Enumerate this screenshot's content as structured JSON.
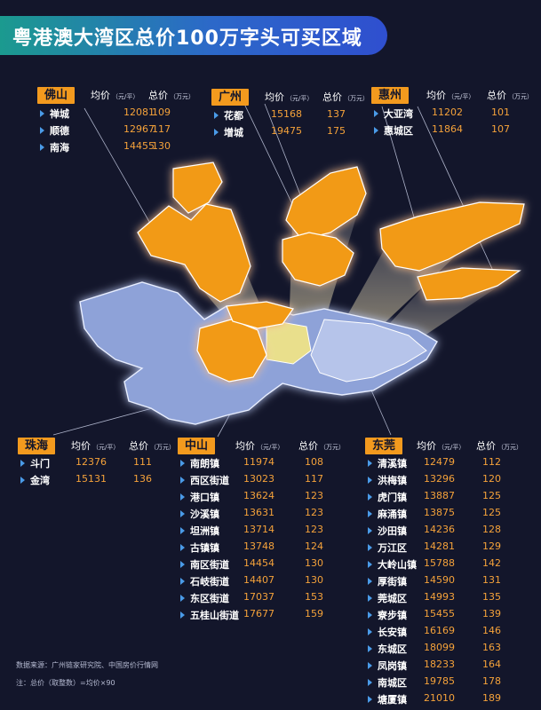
{
  "title": "粤港澳大湾区总价100万字头可买区域",
  "columns": {
    "price_label": "均价",
    "price_unit": "（元/平）",
    "total_label": "总价",
    "total_unit": "（万元）"
  },
  "colors": {
    "background": "#13162b",
    "accent": "#f39a1e",
    "value_text": "#f5a23a",
    "map_orange": "#f29a16",
    "map_blue": "#8ea2d8"
  },
  "regions": [
    {
      "id": "foshan",
      "name": "佛山",
      "areas": [
        {
          "name": "禅城",
          "price": "12081",
          "total": "109"
        },
        {
          "name": "顺德",
          "price": "12967",
          "total": "117"
        },
        {
          "name": "南海",
          "price": "14455",
          "total": "130"
        }
      ]
    },
    {
      "id": "guangzhou",
      "name": "广州",
      "areas": [
        {
          "name": "花都",
          "price": "15168",
          "total": "137"
        },
        {
          "name": "增城",
          "price": "19475",
          "total": "175"
        }
      ]
    },
    {
      "id": "huizhou",
      "name": "惠州",
      "areas": [
        {
          "name": "大亚湾",
          "price": "11202",
          "total": "101"
        },
        {
          "name": "惠城区",
          "price": "11864",
          "total": "107"
        }
      ]
    },
    {
      "id": "zhuhai",
      "name": "珠海",
      "areas": [
        {
          "name": "斗门",
          "price": "12376",
          "total": "111"
        },
        {
          "name": "金湾",
          "price": "15131",
          "total": "136"
        }
      ]
    },
    {
      "id": "zhongshan",
      "name": "中山",
      "areas": [
        {
          "name": "南朗镇",
          "price": "11974",
          "total": "108"
        },
        {
          "name": "西区街道",
          "price": "13023",
          "total": "117"
        },
        {
          "name": "港口镇",
          "price": "13624",
          "total": "123"
        },
        {
          "name": "沙溪镇",
          "price": "13631",
          "total": "123"
        },
        {
          "name": "坦洲镇",
          "price": "13714",
          "total": "123"
        },
        {
          "name": "古镇镇",
          "price": "13748",
          "total": "124"
        },
        {
          "name": "南区街道",
          "price": "14454",
          "total": "130"
        },
        {
          "name": "石岐街道",
          "price": "14407",
          "total": "130"
        },
        {
          "name": "东区街道",
          "price": "17037",
          "total": "153"
        },
        {
          "name": "五桂山街道",
          "price": "17677",
          "total": "159"
        }
      ]
    },
    {
      "id": "dongguan",
      "name": "东莞",
      "areas": [
        {
          "name": "清溪镇",
          "price": "12479",
          "total": "112"
        },
        {
          "name": "洪梅镇",
          "price": "13296",
          "total": "120"
        },
        {
          "name": "虎门镇",
          "price": "13887",
          "total": "125"
        },
        {
          "name": "麻涌镇",
          "price": "13875",
          "total": "125"
        },
        {
          "name": "沙田镇",
          "price": "14236",
          "total": "128"
        },
        {
          "name": "万江区",
          "price": "14281",
          "total": "129"
        },
        {
          "name": "大岭山镇",
          "price": "15788",
          "total": "142"
        },
        {
          "name": "厚街镇",
          "price": "14590",
          "total": "131"
        },
        {
          "name": "莞城区",
          "price": "14993",
          "total": "135"
        },
        {
          "name": "寮步镇",
          "price": "15455",
          "total": "139"
        },
        {
          "name": "长安镇",
          "price": "16169",
          "total": "146"
        },
        {
          "name": "东城区",
          "price": "18099",
          "total": "163"
        },
        {
          "name": "凤岗镇",
          "price": "18233",
          "total": "164"
        },
        {
          "name": "南城区",
          "price": "19785",
          "total": "178"
        },
        {
          "name": "塘厦镇",
          "price": "21010",
          "total": "189"
        }
      ]
    }
  ],
  "footnotes": {
    "source": "数据来源：广州链家研究院、中国房价行情网",
    "note": "注：总价（取整数）=均价×90"
  }
}
